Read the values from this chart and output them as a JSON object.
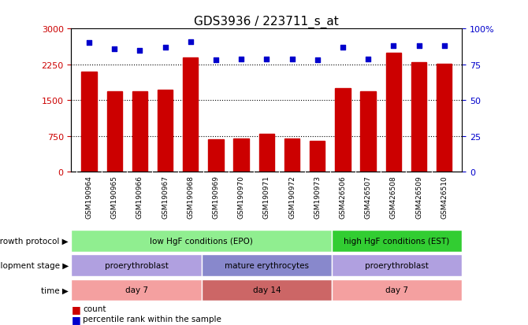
{
  "title": "GDS3936 / 223711_s_at",
  "samples": [
    "GSM190964",
    "GSM190965",
    "GSM190966",
    "GSM190967",
    "GSM190968",
    "GSM190969",
    "GSM190970",
    "GSM190971",
    "GSM190972",
    "GSM190973",
    "GSM426506",
    "GSM426507",
    "GSM426508",
    "GSM426509",
    "GSM426510"
  ],
  "counts": [
    2100,
    1680,
    1680,
    1720,
    2400,
    680,
    700,
    800,
    700,
    650,
    1750,
    1680,
    2500,
    2300,
    2270
  ],
  "percentiles": [
    90,
    86,
    85,
    87,
    91,
    78,
    79,
    79,
    79,
    78,
    87,
    79,
    88,
    88,
    88
  ],
  "bar_color": "#cc0000",
  "dot_color": "#0000cc",
  "ylim_left": [
    0,
    3000
  ],
  "ylim_right": [
    0,
    100
  ],
  "yticks_left": [
    0,
    750,
    1500,
    2250,
    3000
  ],
  "yticks_right": [
    0,
    25,
    50,
    75,
    100
  ],
  "grid_values": [
    750,
    1500,
    2250
  ],
  "annotation_rows": [
    {
      "label": "growth protocol",
      "segments": [
        {
          "start": 0,
          "end": 10,
          "text": "low HgF conditions (EPO)",
          "color": "#90ee90"
        },
        {
          "start": 10,
          "end": 15,
          "text": "high HgF conditions (EST)",
          "color": "#32cd32"
        }
      ]
    },
    {
      "label": "development stage",
      "segments": [
        {
          "start": 0,
          "end": 5,
          "text": "proerythroblast",
          "color": "#b0a0e0"
        },
        {
          "start": 5,
          "end": 10,
          "text": "mature erythrocytes",
          "color": "#8888cc"
        },
        {
          "start": 10,
          "end": 15,
          "text": "proerythroblast",
          "color": "#b0a0e0"
        }
      ]
    },
    {
      "label": "time",
      "segments": [
        {
          "start": 0,
          "end": 5,
          "text": "day 7",
          "color": "#f4a0a0"
        },
        {
          "start": 5,
          "end": 10,
          "text": "day 14",
          "color": "#cc6666"
        },
        {
          "start": 10,
          "end": 15,
          "text": "day 7",
          "color": "#f4a0a0"
        }
      ]
    }
  ],
  "legend_items": [
    {
      "color": "#cc0000",
      "label": "count"
    },
    {
      "color": "#0000cc",
      "label": "percentile rank within the sample"
    }
  ],
  "bg_color": "#ffffff",
  "tick_label_color_left": "#cc0000",
  "tick_label_color_right": "#0000cc",
  "xtick_bg_color": "#cccccc"
}
